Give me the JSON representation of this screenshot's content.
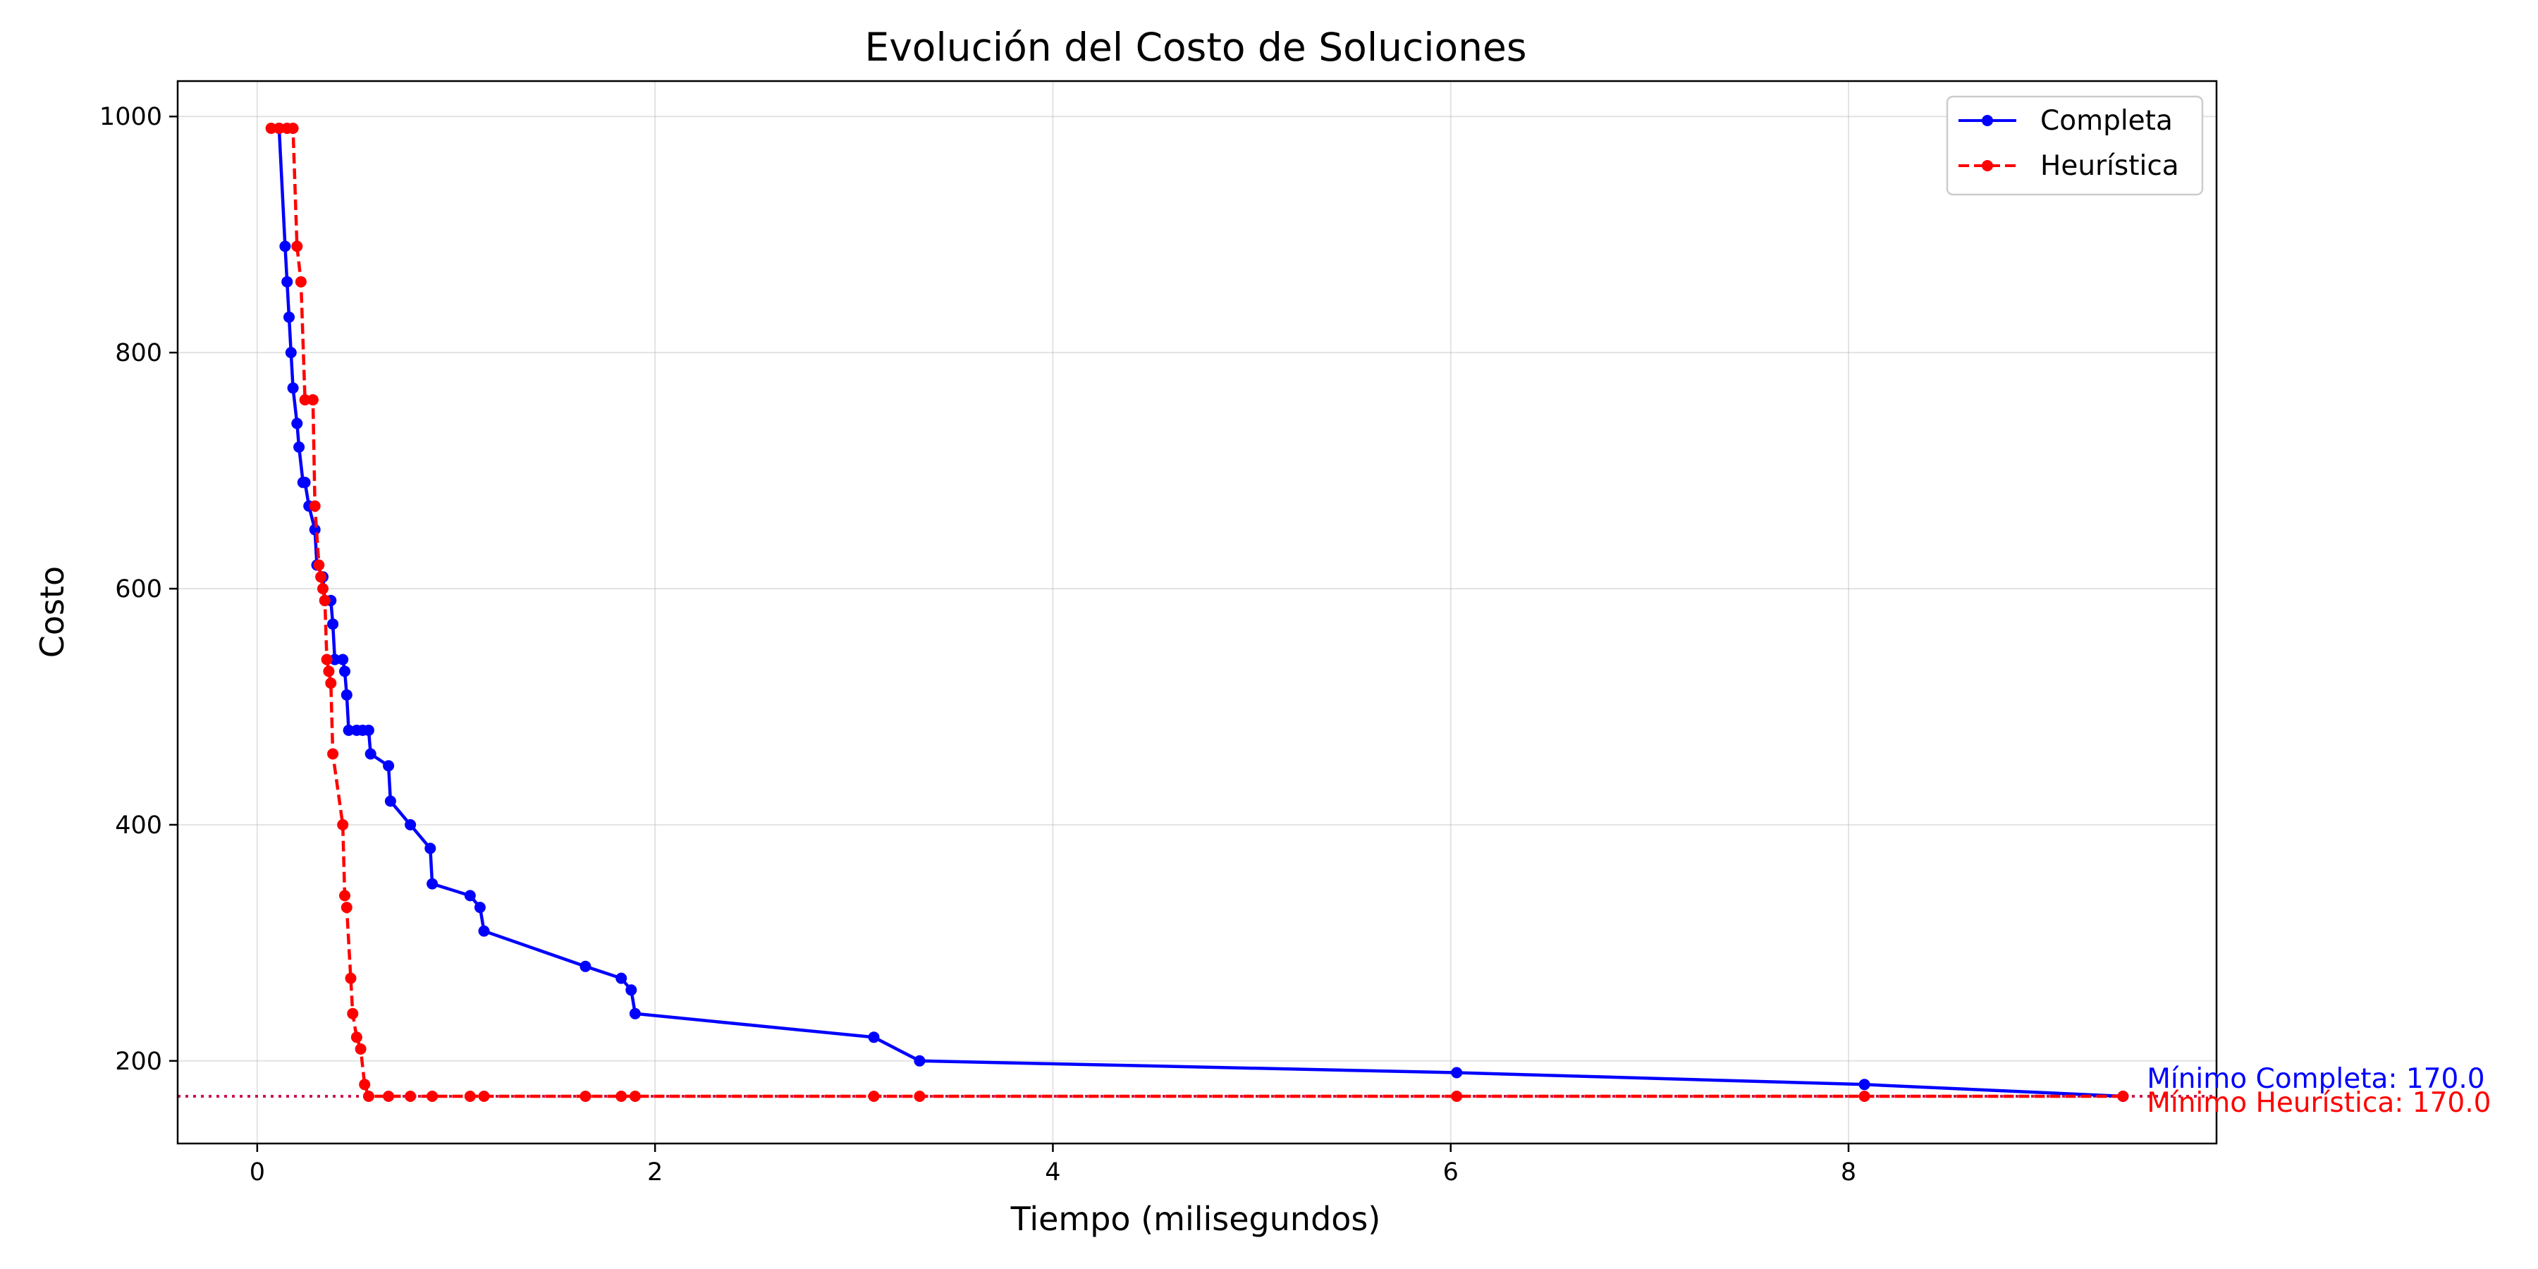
{
  "chart_data": {
    "type": "line",
    "title": "Evolución del Costo de Soluciones",
    "xlabel": "Tiempo (milisegundos)",
    "ylabel": "Costo",
    "xlim": [
      -0.4,
      9.85
    ],
    "ylim": [
      130,
      1030
    ],
    "xticks": [
      0,
      2,
      4,
      6,
      8
    ],
    "yticks": [
      200,
      400,
      600,
      800,
      1000
    ],
    "grid": true,
    "legend_position": "top-right",
    "series": [
      {
        "name": "Completa",
        "color": "#0000ff",
        "line_style": "solid",
        "marker": "circle",
        "points": [
          [
            0.11,
            990
          ],
          [
            0.14,
            890
          ],
          [
            0.15,
            860
          ],
          [
            0.16,
            830
          ],
          [
            0.17,
            800
          ],
          [
            0.18,
            770
          ],
          [
            0.2,
            740
          ],
          [
            0.21,
            720
          ],
          [
            0.23,
            690
          ],
          [
            0.24,
            690
          ],
          [
            0.26,
            670
          ],
          [
            0.29,
            650
          ],
          [
            0.3,
            620
          ],
          [
            0.33,
            610
          ],
          [
            0.34,
            590
          ],
          [
            0.37,
            590
          ],
          [
            0.38,
            570
          ],
          [
            0.39,
            540
          ],
          [
            0.43,
            540
          ],
          [
            0.44,
            530
          ],
          [
            0.45,
            510
          ],
          [
            0.46,
            480
          ],
          [
            0.5,
            480
          ],
          [
            0.53,
            480
          ],
          [
            0.56,
            480
          ],
          [
            0.57,
            460
          ],
          [
            0.66,
            450
          ],
          [
            0.67,
            420
          ],
          [
            0.77,
            400
          ],
          [
            0.87,
            380
          ],
          [
            0.88,
            350
          ],
          [
            1.07,
            340
          ],
          [
            1.12,
            330
          ],
          [
            1.14,
            310
          ],
          [
            1.65,
            280
          ],
          [
            1.83,
            270
          ],
          [
            1.88,
            260
          ],
          [
            1.9,
            240
          ],
          [
            3.1,
            220
          ],
          [
            3.33,
            200
          ],
          [
            6.03,
            190
          ],
          [
            8.08,
            180
          ],
          [
            9.38,
            170
          ]
        ]
      },
      {
        "name": "Heurística",
        "color": "#ff0000",
        "line_style": "dashed",
        "marker": "circle",
        "points": [
          [
            0.07,
            990
          ],
          [
            0.11,
            990
          ],
          [
            0.15,
            990
          ],
          [
            0.18,
            990
          ],
          [
            0.2,
            890
          ],
          [
            0.22,
            860
          ],
          [
            0.24,
            760
          ],
          [
            0.28,
            760
          ],
          [
            0.29,
            670
          ],
          [
            0.31,
            620
          ],
          [
            0.32,
            610
          ],
          [
            0.33,
            600
          ],
          [
            0.34,
            590
          ],
          [
            0.35,
            540
          ],
          [
            0.36,
            530
          ],
          [
            0.37,
            520
          ],
          [
            0.38,
            460
          ],
          [
            0.43,
            400
          ],
          [
            0.44,
            340
          ],
          [
            0.45,
            330
          ],
          [
            0.47,
            270
          ],
          [
            0.48,
            240
          ],
          [
            0.5,
            220
          ],
          [
            0.52,
            210
          ],
          [
            0.54,
            180
          ],
          [
            0.56,
            170
          ],
          [
            0.66,
            170
          ],
          [
            0.77,
            170
          ],
          [
            0.88,
            170
          ],
          [
            1.07,
            170
          ],
          [
            1.14,
            170
          ],
          [
            1.65,
            170
          ],
          [
            1.83,
            170
          ],
          [
            1.9,
            170
          ],
          [
            3.1,
            170
          ],
          [
            3.33,
            170
          ],
          [
            6.03,
            170
          ],
          [
            8.08,
            170
          ],
          [
            9.38,
            170
          ]
        ]
      }
    ],
    "reference_lines": [
      {
        "y": 170,
        "color": "#0000ff",
        "style": "dotted"
      },
      {
        "y": 170,
        "color": "#ff0000",
        "style": "dotted"
      }
    ],
    "annotations": [
      {
        "text": "Mínimo Completa: 170.0",
        "color": "#0000ff",
        "x": 9.5,
        "y": 170
      },
      {
        "text": "Mínimo Heurística: 170.0",
        "color": "#ff0000",
        "x": 9.5,
        "y": 170
      }
    ]
  }
}
